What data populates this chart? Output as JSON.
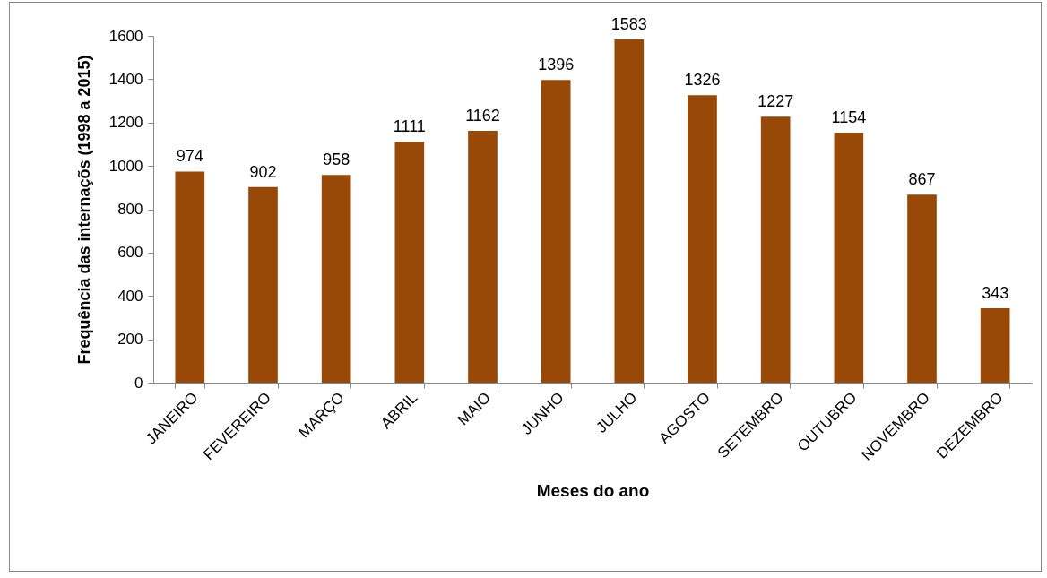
{
  "chart_data": {
    "type": "bar",
    "xlabel": "Meses do ano",
    "ylabel": "Frequência das internaçõs (1998 a 2015)",
    "categories": [
      "JANEIRO",
      "FEVEREIRO",
      "MARÇO",
      "ABRIL",
      "MAIO",
      "JUNHO",
      "JULHO",
      "AGOSTO",
      "SETEMBRO",
      "OUTUBRO",
      "NOVEMBRO",
      "DEZEMBRO"
    ],
    "values": [
      974,
      902,
      958,
      1111,
      1162,
      1396,
      1583,
      1326,
      1227,
      1154,
      867,
      343
    ],
    "color": "#984807",
    "ylim": [
      0,
      1600
    ],
    "yticks": [
      0,
      200,
      400,
      600,
      800,
      1000,
      1200,
      1400,
      1600
    ],
    "data_labels": true
  }
}
